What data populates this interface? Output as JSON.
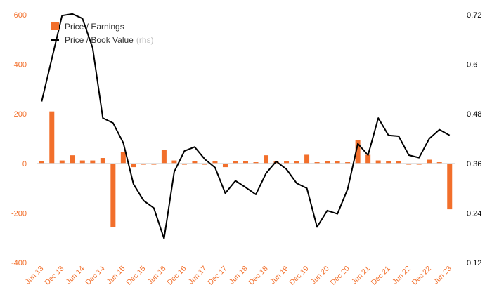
{
  "chart_data": {
    "type": "bar+line",
    "categories": [
      "Jun 13",
      "Sep 13",
      "Dec 13",
      "Mar 14",
      "Jun 14",
      "Sep 14",
      "Dec 14",
      "Mar 15",
      "Jun 15",
      "Sep 15",
      "Dec 15",
      "Mar 16",
      "Jun 16",
      "Sep 16",
      "Dec 16",
      "Mar 17",
      "Jun 17",
      "Sep 17",
      "Dec 17",
      "Mar 18",
      "Jun 18",
      "Sep 18",
      "Dec 18",
      "Mar 19",
      "Jun 19",
      "Sep 19",
      "Dec 19",
      "Mar 20",
      "Jun 20",
      "Sep 20",
      "Dec 20",
      "Mar 21",
      "Jun 21",
      "Sep 21",
      "Dec 21",
      "Mar 22",
      "Jun 22",
      "Sep 22",
      "Dec 22",
      "Mar 23",
      "Jun 23"
    ],
    "x_tick_labels": [
      "Jun 13",
      "Dec 13",
      "Jun 14",
      "Dec 14",
      "Jun 15",
      "Dec 15",
      "Jun 16",
      "Dec 16",
      "Jun 17",
      "Dec 17",
      "Jun 18",
      "Dec 18",
      "Jun 19",
      "Dec 19",
      "Jun 20",
      "Dec 20",
      "Jun 21",
      "Dec 21",
      "Jun 22",
      "Dec 22",
      "Jun 23"
    ],
    "series": [
      {
        "name": "Price / Earnings",
        "type": "bar",
        "axis": "left",
        "color": "#f26f2b",
        "values": [
          8,
          210,
          12,
          33,
          12,
          12,
          22,
          -258,
          45,
          -15,
          -5,
          -5,
          55,
          12,
          -5,
          8,
          -5,
          10,
          -15,
          8,
          8,
          5,
          33,
          10,
          8,
          8,
          35,
          5,
          8,
          10,
          5,
          95,
          35,
          12,
          10,
          8,
          -5,
          -5,
          15,
          5,
          -185
        ]
      },
      {
        "name": "Price / Book Value",
        "type": "line",
        "axis": "right",
        "color": "#000000",
        "values": [
          0.51,
          0.614,
          0.718,
          0.722,
          0.711,
          0.64,
          0.47,
          0.458,
          0.41,
          0.31,
          0.27,
          0.252,
          0.178,
          0.34,
          0.39,
          0.4,
          0.37,
          0.35,
          0.288,
          0.318,
          0.302,
          0.285,
          0.336,
          0.365,
          0.346,
          0.312,
          0.3,
          0.206,
          0.246,
          0.238,
          0.298,
          0.408,
          0.38,
          0.47,
          0.428,
          0.426,
          0.38,
          0.374,
          0.42,
          0.442,
          0.428
        ]
      }
    ],
    "legend": {
      "bar_label": "Price / Earnings",
      "line_label": "Price / Book Value",
      "line_suffix": "(rhs)",
      "placement": "top-left"
    },
    "y_left": {
      "min": -400,
      "max": 600,
      "ticks": [
        -400,
        -200,
        0,
        200,
        400,
        600
      ],
      "tick_labels": [
        "-400",
        "-200",
        "0",
        "200",
        "400",
        "600"
      ],
      "color": "#f26f2b"
    },
    "y_right": {
      "min": 0.12,
      "max": 0.72,
      "ticks": [
        0.12,
        0.24,
        0.36,
        0.48,
        0.6,
        0.72
      ],
      "tick_labels": [
        "0.12",
        "0.24",
        "0.36",
        "0.48",
        "0.6",
        "0.72"
      ],
      "color": "#000000"
    },
    "grid": false
  }
}
